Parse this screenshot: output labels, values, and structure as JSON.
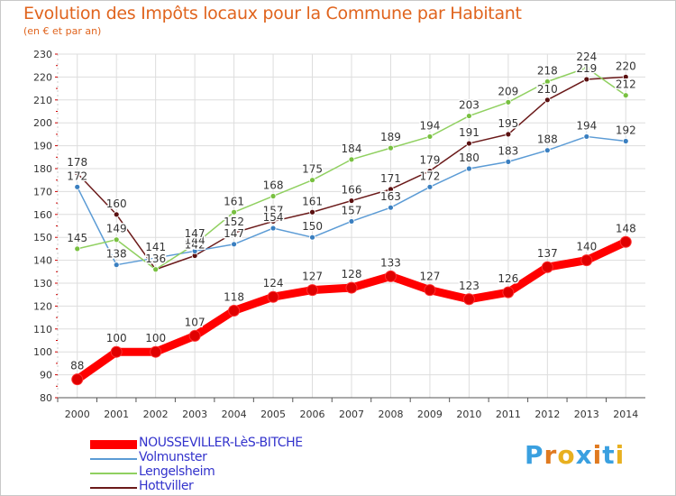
{
  "header": {
    "title": "Evolution des Impôts locaux pour la Commune par Habitant",
    "subtitle": "(en € et par an)"
  },
  "logo": {
    "text": "Proxiti",
    "letter_colors": [
      "#3aa0e0",
      "#e07a20",
      "#e8b020",
      "#3aa0e0",
      "#e07a20",
      "#3aa0e0",
      "#e8b020"
    ]
  },
  "chart_data": {
    "type": "line",
    "x": [
      "2000",
      "2001",
      "2002",
      "2003",
      "2004",
      "2005",
      "2006",
      "2007",
      "2008",
      "2009",
      "2010",
      "2011",
      "2012",
      "2013",
      "2014"
    ],
    "ylim": [
      80,
      230
    ],
    "yticks": [
      80,
      90,
      100,
      110,
      120,
      130,
      140,
      150,
      160,
      170,
      180,
      190,
      200,
      210,
      220,
      230
    ],
    "grid": true,
    "legend_position": "bottom",
    "series": [
      {
        "name": "Hottviller",
        "color": "#6b1a1a",
        "marker": "#5a1010",
        "values": [
          178,
          160,
          136,
          142,
          152,
          157,
          161,
          166,
          171,
          179,
          191,
          195,
          210,
          219,
          220
        ],
        "labels": [
          "178",
          "160",
          "",
          "142",
          "152",
          "157",
          "161",
          "166",
          "171",
          "179",
          "191",
          "195",
          "210",
          "219",
          "220"
        ]
      },
      {
        "name": "Volmunster",
        "color": "#5b9bd5",
        "marker": "#3a7fc0",
        "values": [
          172,
          138,
          141,
          144,
          147,
          154,
          150,
          157,
          163,
          172,
          180,
          183,
          188,
          194,
          192
        ],
        "labels": [
          "172",
          "138",
          "141",
          "144",
          "147",
          "154",
          "150",
          "157",
          "163",
          "172",
          "180",
          "183",
          "188",
          "194",
          "192"
        ]
      },
      {
        "name": "Lengelsheim",
        "color": "#90d060",
        "marker": "#78c040",
        "values": [
          145,
          149,
          136,
          147,
          161,
          168,
          175,
          184,
          189,
          194,
          203,
          209,
          218,
          224,
          212
        ],
        "labels": [
          "145",
          "149",
          "136",
          "147",
          "161",
          "168",
          "175",
          "184",
          "189",
          "194",
          "203",
          "209",
          "218",
          "224",
          "212"
        ]
      },
      {
        "name": "NOUSSEVILLER-LèS-BITCHE",
        "color": "#ff0000",
        "marker": "#e00000",
        "values": [
          88,
          100,
          100,
          107,
          118,
          124,
          127,
          128,
          133,
          127,
          123,
          126,
          137,
          140,
          148
        ],
        "labels": [
          "88",
          "100",
          "100",
          "107",
          "118",
          "124",
          "127",
          "128",
          "133",
          "127",
          "123",
          "126",
          "137",
          "140",
          "148"
        ]
      }
    ],
    "legend": [
      {
        "name": "NOUSSEVILLER-LèS-BITCHE",
        "color": "#ff0000",
        "text_color": "#3333cc",
        "thick": true
      },
      {
        "name": "Volmunster",
        "color": "#5b9bd5",
        "text_color": "#3333cc",
        "thick": false
      },
      {
        "name": "Lengelsheim",
        "color": "#90d060",
        "text_color": "#3333cc",
        "thick": false
      },
      {
        "name": "Hottviller",
        "color": "#6b1a1a",
        "text_color": "#3333cc",
        "thick": false
      }
    ]
  }
}
